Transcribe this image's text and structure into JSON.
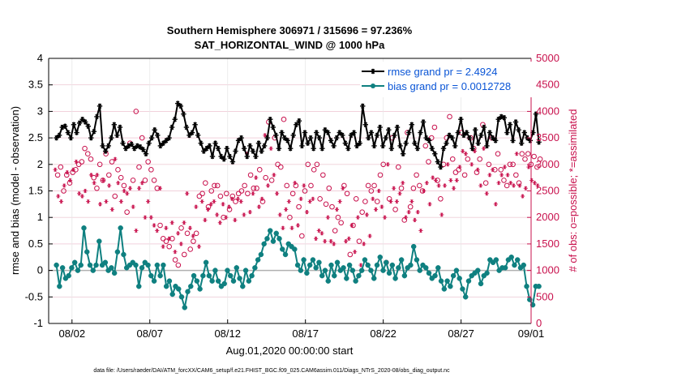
{
  "chart_data": {
    "type": "line",
    "title": "Southern Hemisphere 306971 / 315696 = 97.236%",
    "subtitle": "SAT_HORIZONTAL_WIND @ 1000 hPa",
    "xlabel": "Aug.01,2020 00:00:00 start",
    "ylabel_left": "rmse and bias (model - observation)",
    "ylabel_right": "# of obs: o=possible; *=assimilated",
    "xlim": [
      0.5,
      31.5
    ],
    "ylim_left": [
      -1,
      4
    ],
    "ylim_right": [
      0,
      5000
    ],
    "x_ticks": [
      {
        "value": 2,
        "label": "08/02"
      },
      {
        "value": 7,
        "label": "08/07"
      },
      {
        "value": 12,
        "label": "08/12"
      },
      {
        "value": 17,
        "label": "08/17"
      },
      {
        "value": 22,
        "label": "08/22"
      },
      {
        "value": 27,
        "label": "08/27"
      },
      {
        "value": 32,
        "label": "09/01"
      }
    ],
    "y_ticks_left": [
      "-1",
      "-0.5",
      "0",
      "0.5",
      "1",
      "1.5",
      "2",
      "2.5",
      "3",
      "3.5",
      "4"
    ],
    "y_ticks_right": [
      "0",
      "500",
      "1000",
      "1500",
      "2000",
      "2500",
      "3000",
      "3500",
      "4000",
      "4500",
      "5000"
    ],
    "grid": true,
    "legend_position": "top-right",
    "series": [
      {
        "name": "rmse grand pr = 2.4924",
        "axis": "left",
        "color": "#000000",
        "marker": "asterisk",
        "values": [
          2.5,
          2.55,
          2.7,
          2.72,
          2.6,
          2.5,
          2.75,
          2.6,
          2.78,
          2.85,
          2.8,
          2.72,
          2.5,
          2.62,
          2.9,
          3.1,
          2.35,
          2.25,
          2.35,
          2.5,
          2.75,
          2.55,
          2.7,
          2.4,
          2.3,
          2.35,
          2.38,
          2.3,
          2.35,
          2.33,
          2.28,
          2.2,
          2.4,
          2.5,
          2.65,
          2.55,
          2.35,
          2.4,
          2.45,
          2.5,
          2.7,
          2.85,
          3.15,
          3.1,
          2.95,
          2.7,
          2.55,
          2.6,
          2.75,
          2.55,
          2.4,
          2.25,
          2.3,
          2.35,
          2.15,
          2.4,
          2.3,
          2.15,
          2.1,
          2.3,
          2.15,
          2.05,
          2.25,
          2.45,
          2.5,
          2.3,
          2.15,
          2.35,
          2.25,
          2.15,
          2.4,
          2.25,
          2.35,
          2.5,
          2.85,
          2.7,
          2.55,
          2.3,
          2.6,
          2.5,
          2.45,
          2.3,
          2.55,
          2.75,
          2.82,
          2.35,
          2.6,
          2.4,
          2.5,
          2.3,
          2.6,
          2.5,
          2.3,
          2.65,
          2.6,
          2.45,
          2.35,
          2.5,
          2.6,
          2.55,
          2.4,
          2.3,
          2.55,
          2.6,
          2.35,
          2.4,
          3.1,
          2.75,
          2.5,
          2.6,
          2.35,
          2.55,
          2.7,
          2.35,
          2.5,
          2.65,
          2.3,
          2.55,
          2.7,
          2.35,
          2.2,
          2.4,
          2.6,
          2.75,
          2.4,
          2.3,
          2.6,
          2.8,
          2.5,
          2.45,
          2.3,
          2.2,
          2.05,
          1.95,
          2.3,
          2.4,
          2.55,
          2.5,
          2.35,
          2.6,
          2.85,
          2.55,
          2.6,
          2.5,
          2.3,
          2.65,
          2.4,
          2.55,
          2.7,
          2.35,
          2.6,
          2.5,
          2.45,
          2.85,
          2.9,
          2.88,
          2.6,
          2.75,
          2.45,
          2.8,
          2.65,
          2.4,
          2.6,
          2.5,
          2.45,
          2.6,
          2.95,
          2.42
        ]
      },
      {
        "name": "bias grand pr = 0.0012728",
        "axis": "left",
        "color": "#0f8080",
        "marker": "circle",
        "values": [
          0.1,
          -0.3,
          0.05,
          -0.15,
          -0.1,
          0.05,
          0.15,
          0.0,
          0.1,
          0.8,
          0.35,
          0.1,
          0.0,
          0.1,
          0.55,
          0.1,
          0.15,
          0.0,
          0.05,
          -0.05,
          0.35,
          0.8,
          0.3,
          0.05,
          0.1,
          0.15,
          0.1,
          -0.3,
          0.05,
          0.15,
          0.1,
          -0.1,
          -0.2,
          0.1,
          -0.1,
          0.1,
          -0.3,
          -0.2,
          -0.45,
          -0.3,
          -0.35,
          -0.5,
          -0.7,
          -0.4,
          -0.3,
          -0.1,
          -0.2,
          -0.35,
          -0.1,
          0.15,
          -0.1,
          -0.2,
          0.0,
          -0.2,
          -0.3,
          -0.25,
          0.0,
          -0.1,
          -0.2,
          0.05,
          -0.15,
          -0.3,
          0.0,
          -0.2,
          -0.1,
          0.05,
          0.2,
          0.3,
          0.5,
          0.6,
          0.75,
          0.55,
          0.7,
          0.6,
          0.4,
          0.3,
          0.5,
          0.45,
          0.4,
          0.1,
          0.0,
          0.2,
          -0.05,
          0.1,
          0.2,
          0.05,
          0.15,
          -0.1,
          0.0,
          -0.2,
          0.1,
          -0.1,
          0.15,
          0.0,
          0.05,
          -0.15,
          0.1,
          0.0,
          -0.2,
          -0.1,
          0.0,
          0.2,
          0.1,
          0.0,
          -0.15,
          0.1,
          0.25,
          0.0,
          0.15,
          -0.05,
          0.1,
          -0.15,
          0.05,
          0.2,
          -0.1,
          0.05,
          0.1,
          0.45,
          0.2,
          0.0,
          0.1,
          0.05,
          -0.05,
          -0.15,
          -0.1,
          0.05,
          -0.2,
          -0.35,
          -0.2,
          -0.3,
          -0.1,
          0.0,
          -0.15,
          -0.35,
          -0.5,
          -0.2,
          -0.1,
          -0.05,
          0.0,
          -0.25,
          -0.1,
          -0.05,
          0.2,
          0.15,
          0.2,
          0.0,
          0.05,
          0.05,
          0.2,
          0.25,
          0.1,
          0.2,
          0.05,
          0.1,
          -0.3,
          -0.55,
          -0.65,
          -0.3,
          -0.3
        ]
      },
      {
        "name": "possible",
        "axis": "right",
        "color": "#c8104c",
        "marker": "open-circle",
        "values": [
          2800,
          2950,
          2500,
          2800,
          2650,
          2850,
          2900,
          3000,
          3050,
          3300,
          3200,
          3100,
          2750,
          2550,
          3000,
          2700,
          3200,
          2800,
          3050,
          2400,
          2900,
          2750,
          2600,
          2100,
          3400,
          2700,
          4000,
          2950,
          3500,
          2700,
          3050,
          2900,
          2700,
          2550,
          1850,
          1600,
          1550,
          1450,
          1600,
          1200,
          1100,
          1800,
          1300,
          1700,
          1400,
          1550,
          1700,
          2400,
          2450,
          2650,
          2200,
          2500,
          2600,
          2600,
          2400,
          2000,
          2450,
          2150,
          2400,
          2300,
          2450,
          2500,
          2600,
          2450,
          2800,
          2550,
          2550,
          2900,
          2300,
          2750,
          3800,
          2700,
          3500,
          3000,
          2950,
          3850,
          2600,
          2000,
          2450,
          2600,
          2200,
          1650,
          2500,
          3000,
          2600,
          2900,
          3000,
          2350,
          2800,
          2250,
          2550,
          2200,
          1750,
          2000,
          1900,
          2600,
          2450,
          1300,
          1850,
          2350,
          1550,
          2100,
          2300,
          2600,
          2500,
          2600,
          2300,
          2800,
          3000,
          1150,
          2350,
          3500,
          2150,
          2950,
          2550,
          1950,
          3600,
          2200,
          2550,
          2800,
          2600,
          2500,
          3350,
          3050,
          3500,
          3700,
          2700,
          2350,
          3000,
          3500,
          3900,
          3100,
          2850,
          2900,
          3600,
          2800,
          3100,
          3500,
          3300,
          2850,
          3100,
          3750,
          2650,
          3000,
          3500,
          2900,
          3200,
          2900,
          2700,
          2600,
          3000,
          3000,
          2800,
          2650,
          3200,
          3100,
          3200,
          3000,
          3150,
          2950,
          3100
        ]
      },
      {
        "name": "assimilated",
        "axis": "right",
        "color": "#c8104c",
        "marker": "asterisk",
        "values": [
          2900,
          2400,
          2300,
          2600,
          2850,
          2700,
          2900,
          3050,
          2450,
          2400,
          2500,
          2300,
          2800,
          2650,
          2800,
          2250,
          2700,
          2300,
          2600,
          2150,
          3100,
          2650,
          2300,
          2500,
          2450,
          2550,
          2200,
          1750,
          2550,
          2650,
          2000,
          2300,
          2000,
          1850,
          1750,
          2550,
          1450,
          1800,
          1600,
          1900,
          1350,
          1700,
          1500,
          1900,
          2450,
          1800,
          1650,
          2200,
          1450,
          2300,
          1950,
          2150,
          2250,
          2300,
          2050,
          1900,
          2250,
          2000,
          2200,
          2350,
          1950,
          2350,
          2300,
          2050,
          3200,
          2100,
          2450,
          2750,
          2200,
          2350,
          3550,
          2600,
          3300,
          2800,
          2450,
          2050,
          1800,
          2150,
          2300,
          1800,
          2650,
          1850,
          2350,
          2600,
          2100,
          2300,
          2350,
          1600,
          1750,
          1700,
          1550,
          2000,
          1550,
          1500,
          2150,
          2300,
          2550,
          1550,
          1600,
          1850,
          1350,
          2000,
          1100,
          1500,
          2050,
          1650,
          2350,
          2150,
          2500,
          2200,
          2000,
          3000,
          2300,
          2550,
          2300,
          2450,
          2650,
          2000,
          2100,
          2300,
          1950,
          2100,
          1750,
          2500,
          2650,
          2250,
          2750,
          2700,
          2600,
          2050,
          2600,
          3000,
          2700,
          2550,
          2700,
          2950,
          3250,
          3200,
          3500,
          3000,
          3250,
          2900,
          2600,
          3300,
          2450,
          2800,
          2900,
          2250,
          2650,
          2800,
          2950,
          2800,
          2650,
          2600,
          3200,
          2600,
          2400,
          2550,
          2950,
          2700,
          2650,
          2600
        ]
      }
    ],
    "reference_line": {
      "y": 0,
      "color": "#b0b0b0"
    },
    "footer": "data file: /Users/raeder/DAI/ATM_forcXX/CAM6_setup/f.e21.FHIST_BGC.f09_025.CAM6assim.011/Diags_NTrS_2020-08/obs_diag_output.nc"
  }
}
